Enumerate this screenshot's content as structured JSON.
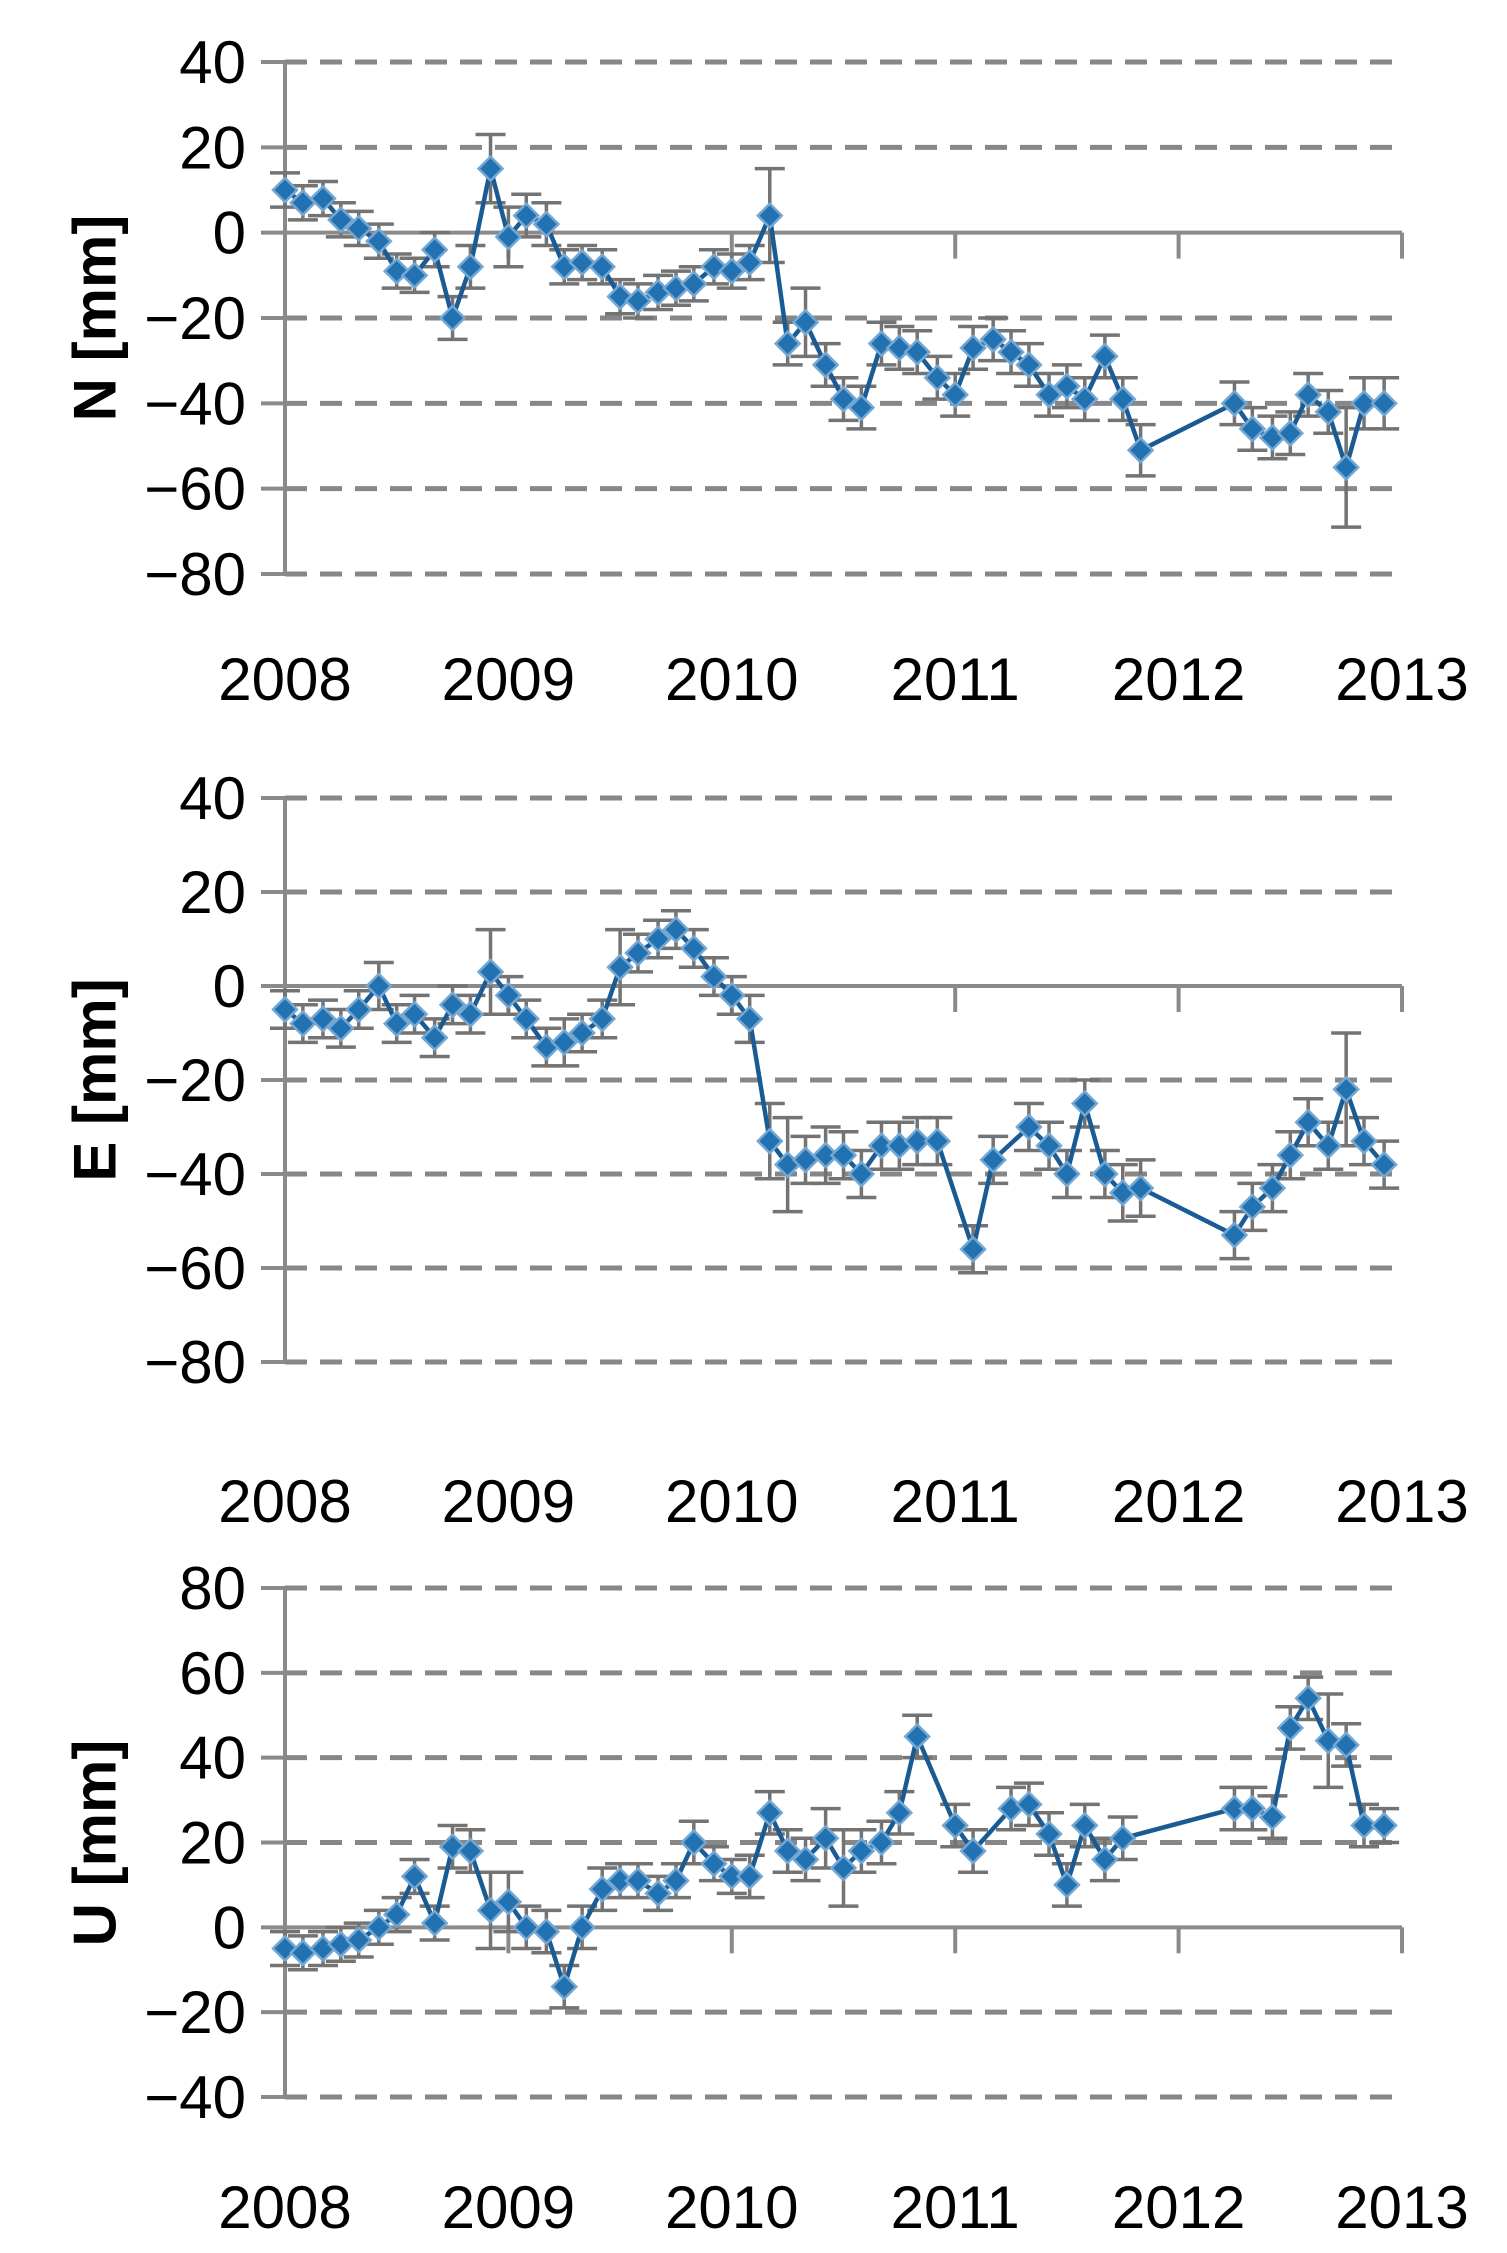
{
  "colors": {
    "marker": "#2272B2",
    "marker_halo": "#74A7D2",
    "line": "#1A5B94",
    "error_bar": "#737373",
    "gridline": "#878787",
    "axis": "#8A8A8A",
    "text": "#000000"
  },
  "chart_data": [
    {
      "type": "line",
      "ylabel": "N [mm]",
      "ylim": [
        -80,
        40
      ],
      "yticks": [
        40,
        20,
        0,
        -20,
        -40,
        -60,
        -80
      ],
      "xticks": [
        2008,
        2009,
        2010,
        2011,
        2012,
        2013
      ],
      "xlim": [
        2008,
        2013.02
      ],
      "grid": "horizontal-dashed",
      "legend": "none",
      "marker": "diamond",
      "points": [
        [
          2008.0,
          10,
          4
        ],
        [
          2008.08,
          7,
          4
        ],
        [
          2008.17,
          8,
          4
        ],
        [
          2008.25,
          3,
          4
        ],
        [
          2008.33,
          1,
          4
        ],
        [
          2008.42,
          -2,
          4
        ],
        [
          2008.5,
          -9,
          4
        ],
        [
          2008.58,
          -10,
          4
        ],
        [
          2008.67,
          -4,
          4
        ],
        [
          2008.75,
          -20,
          5
        ],
        [
          2008.83,
          -8,
          5
        ],
        [
          2008.92,
          15,
          8
        ],
        [
          2009.0,
          -1,
          7
        ],
        [
          2009.08,
          4,
          5
        ],
        [
          2009.17,
          2,
          5
        ],
        [
          2009.25,
          -8,
          4
        ],
        [
          2009.33,
          -7,
          4
        ],
        [
          2009.42,
          -8,
          4
        ],
        [
          2009.5,
          -15,
          4
        ],
        [
          2009.58,
          -16,
          4
        ],
        [
          2009.67,
          -14,
          4
        ],
        [
          2009.75,
          -13,
          4
        ],
        [
          2009.83,
          -12,
          4
        ],
        [
          2009.92,
          -8,
          4
        ],
        [
          2010.0,
          -9,
          4
        ],
        [
          2010.08,
          -7,
          4
        ],
        [
          2010.17,
          4,
          11
        ],
        [
          2010.25,
          -26,
          5
        ],
        [
          2010.33,
          -21,
          8
        ],
        [
          2010.42,
          -31,
          5
        ],
        [
          2010.5,
          -39,
          5
        ],
        [
          2010.58,
          -41,
          5
        ],
        [
          2010.67,
          -26,
          5
        ],
        [
          2010.75,
          -27,
          5
        ],
        [
          2010.83,
          -28,
          5
        ],
        [
          2010.92,
          -34,
          5
        ],
        [
          2011.0,
          -38,
          5
        ],
        [
          2011.08,
          -27,
          5
        ],
        [
          2011.17,
          -25,
          5
        ],
        [
          2011.25,
          -28,
          5
        ],
        [
          2011.33,
          -31,
          5
        ],
        [
          2011.42,
          -38,
          5
        ],
        [
          2011.5,
          -36,
          5
        ],
        [
          2011.58,
          -39,
          5
        ],
        [
          2011.67,
          -29,
          5
        ],
        [
          2011.75,
          -39,
          5
        ],
        [
          2011.83,
          -51,
          6
        ],
        [
          2012.25,
          -40,
          5
        ],
        [
          2012.33,
          -46,
          5
        ],
        [
          2012.42,
          -48,
          5
        ],
        [
          2012.5,
          -47,
          5
        ],
        [
          2012.58,
          -38,
          5
        ],
        [
          2012.67,
          -42,
          5
        ],
        [
          2012.75,
          -55,
          14
        ],
        [
          2012.83,
          -40,
          6
        ],
        [
          2012.92,
          -40,
          6
        ]
      ]
    },
    {
      "type": "line",
      "ylabel": "E [mm]",
      "ylim": [
        -80,
        40
      ],
      "yticks": [
        40,
        20,
        0,
        -20,
        -40,
        -60,
        -80
      ],
      "xticks": [
        2008,
        2009,
        2010,
        2011,
        2012,
        2013
      ],
      "xlim": [
        2008,
        2013.02
      ],
      "grid": "horizontal-dashed",
      "legend": "none",
      "marker": "diamond",
      "points": [
        [
          2008.0,
          -5,
          4
        ],
        [
          2008.08,
          -8,
          4
        ],
        [
          2008.17,
          -7,
          4
        ],
        [
          2008.25,
          -9,
          4
        ],
        [
          2008.33,
          -5,
          4
        ],
        [
          2008.42,
          0,
          5
        ],
        [
          2008.5,
          -8,
          4
        ],
        [
          2008.58,
          -6,
          4
        ],
        [
          2008.67,
          -11,
          4
        ],
        [
          2008.75,
          -4,
          4
        ],
        [
          2008.83,
          -6,
          4
        ],
        [
          2008.92,
          3,
          9
        ],
        [
          2009.0,
          -2,
          4
        ],
        [
          2009.08,
          -7,
          4
        ],
        [
          2009.17,
          -13,
          4
        ],
        [
          2009.25,
          -12,
          5
        ],
        [
          2009.33,
          -10,
          4
        ],
        [
          2009.42,
          -7,
          4
        ],
        [
          2009.5,
          4,
          8
        ],
        [
          2009.58,
          7,
          4
        ],
        [
          2009.67,
          10,
          4
        ],
        [
          2009.75,
          12,
          4
        ],
        [
          2009.83,
          8,
          4
        ],
        [
          2009.92,
          2,
          4
        ],
        [
          2010.0,
          -2,
          4
        ],
        [
          2010.08,
          -7,
          5
        ],
        [
          2010.17,
          -33,
          8
        ],
        [
          2010.25,
          -38,
          10
        ],
        [
          2010.33,
          -37,
          5
        ],
        [
          2010.42,
          -36,
          6
        ],
        [
          2010.5,
          -36,
          5
        ],
        [
          2010.58,
          -40,
          5
        ],
        [
          2010.67,
          -34,
          5
        ],
        [
          2010.75,
          -34,
          5
        ],
        [
          2010.83,
          -33,
          5
        ],
        [
          2010.92,
          -33,
          5
        ],
        [
          2011.08,
          -56,
          5
        ],
        [
          2011.17,
          -37,
          5
        ],
        [
          2011.33,
          -30,
          5
        ],
        [
          2011.42,
          -34,
          5
        ],
        [
          2011.5,
          -40,
          5
        ],
        [
          2011.58,
          -25,
          5
        ],
        [
          2011.67,
          -40,
          5
        ],
        [
          2011.75,
          -44,
          6
        ],
        [
          2011.83,
          -43,
          6
        ],
        [
          2012.25,
          -53,
          5
        ],
        [
          2012.33,
          -47,
          5
        ],
        [
          2012.42,
          -43,
          5
        ],
        [
          2012.5,
          -36,
          5
        ],
        [
          2012.58,
          -29,
          5
        ],
        [
          2012.67,
          -34,
          5
        ],
        [
          2012.75,
          -22,
          12
        ],
        [
          2012.83,
          -33,
          5
        ],
        [
          2012.92,
          -38,
          5
        ]
      ]
    },
    {
      "type": "line",
      "ylabel": "U [mm]",
      "ylim": [
        -40,
        80
      ],
      "yticks": [
        80,
        60,
        40,
        20,
        0,
        -20,
        -40
      ],
      "xticks": [
        2008,
        2009,
        2010,
        2011,
        2012,
        2013
      ],
      "xlim": [
        2008,
        2013.02
      ],
      "grid": "horizontal-dashed",
      "legend": "none",
      "marker": "diamond",
      "points": [
        [
          2008.0,
          -5,
          4
        ],
        [
          2008.08,
          -6,
          4
        ],
        [
          2008.17,
          -5,
          4
        ],
        [
          2008.25,
          -4,
          4
        ],
        [
          2008.33,
          -3,
          4
        ],
        [
          2008.42,
          0,
          4
        ],
        [
          2008.5,
          3,
          4
        ],
        [
          2008.58,
          12,
          4
        ],
        [
          2008.67,
          1,
          4
        ],
        [
          2008.75,
          19,
          5
        ],
        [
          2008.83,
          18,
          5
        ],
        [
          2008.92,
          4,
          9
        ],
        [
          2009.0,
          6,
          7
        ],
        [
          2009.08,
          0,
          5
        ],
        [
          2009.17,
          -1,
          5
        ],
        [
          2009.25,
          -14,
          5
        ],
        [
          2009.33,
          0,
          5
        ],
        [
          2009.42,
          9,
          5
        ],
        [
          2009.5,
          11,
          4
        ],
        [
          2009.58,
          11,
          4
        ],
        [
          2009.67,
          8,
          4
        ],
        [
          2009.75,
          11,
          4
        ],
        [
          2009.83,
          20,
          5
        ],
        [
          2009.92,
          15,
          4
        ],
        [
          2010.0,
          12,
          4
        ],
        [
          2010.08,
          12,
          5
        ],
        [
          2010.17,
          27,
          5
        ],
        [
          2010.25,
          18,
          5
        ],
        [
          2010.33,
          16,
          5
        ],
        [
          2010.42,
          21,
          7
        ],
        [
          2010.5,
          14,
          9
        ],
        [
          2010.58,
          18,
          5
        ],
        [
          2010.67,
          20,
          5
        ],
        [
          2010.75,
          27,
          5
        ],
        [
          2010.83,
          45,
          5
        ],
        [
          2011.0,
          24,
          5
        ],
        [
          2011.08,
          18,
          5
        ],
        [
          2011.25,
          28,
          5
        ],
        [
          2011.33,
          29,
          5
        ],
        [
          2011.42,
          22,
          5
        ],
        [
          2011.5,
          10,
          5
        ],
        [
          2011.58,
          24,
          5
        ],
        [
          2011.67,
          16,
          5
        ],
        [
          2011.75,
          21,
          5
        ],
        [
          2012.25,
          28,
          5
        ],
        [
          2012.33,
          28,
          5
        ],
        [
          2012.42,
          26,
          5
        ],
        [
          2012.5,
          47,
          5
        ],
        [
          2012.58,
          54,
          5
        ],
        [
          2012.67,
          44,
          11
        ],
        [
          2012.75,
          43,
          5
        ],
        [
          2012.83,
          24,
          5
        ],
        [
          2012.92,
          24,
          4
        ]
      ]
    }
  ]
}
